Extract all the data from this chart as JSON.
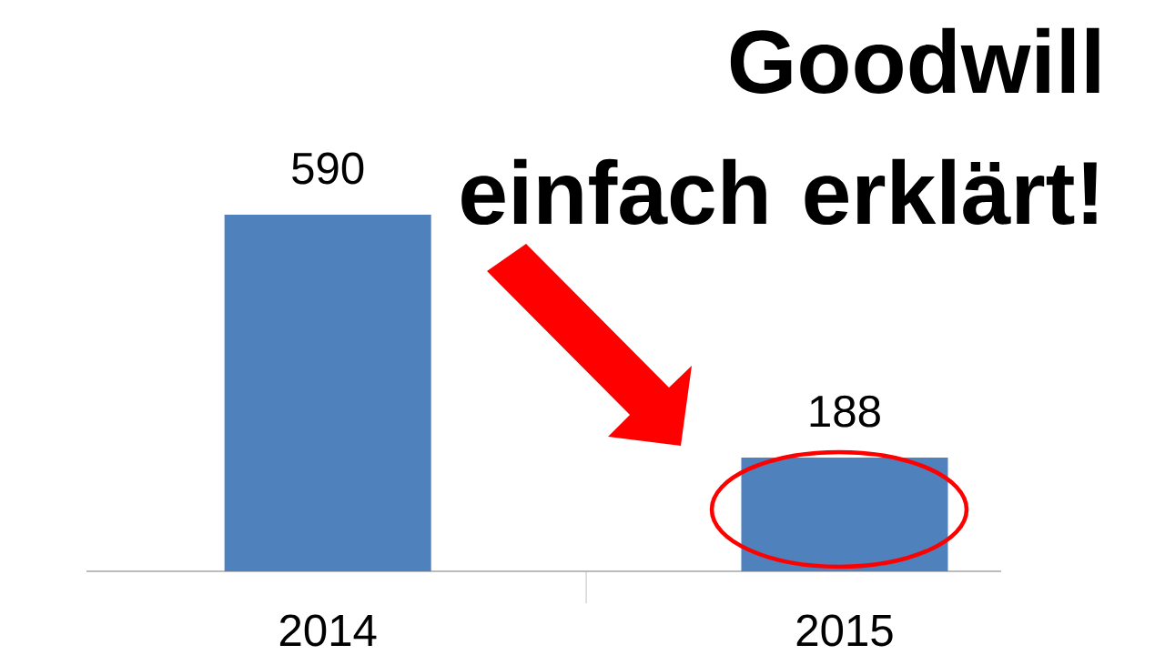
{
  "chart_data": {
    "type": "bar",
    "title": "Goodwill einfach erklärt!",
    "categories": [
      "2014",
      "2015"
    ],
    "values": [
      590,
      188
    ],
    "color": "#4f81bd",
    "data_labels": true,
    "grid": false
  }
}
